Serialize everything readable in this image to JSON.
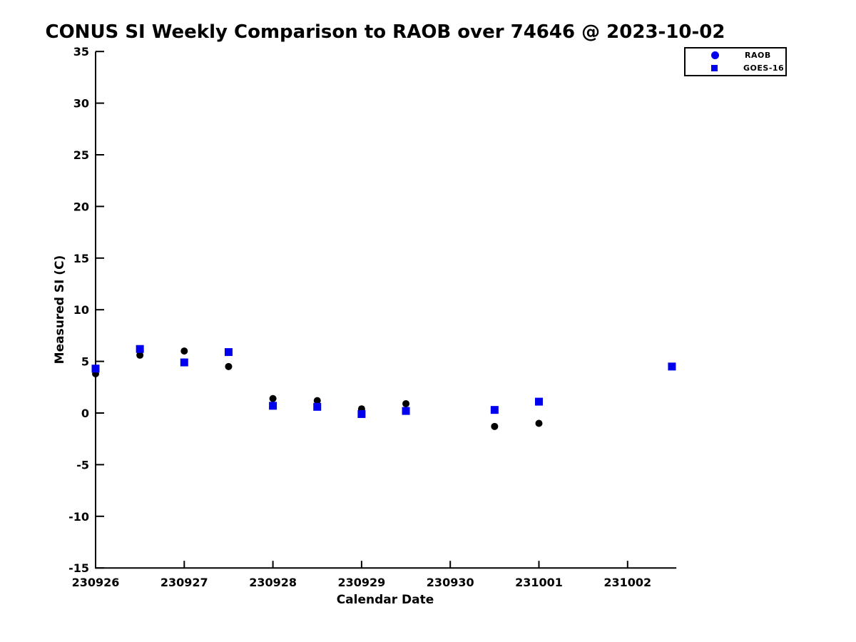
{
  "chart_data": {
    "type": "scatter",
    "title": "CONUS SI Weekly Comparison to RAOB over 74646 @ 2023-10-02",
    "xlabel": "Calendar Date",
    "ylabel": "Measured SI (C)",
    "x_tick_labels": [
      "230926",
      "230927",
      "230928",
      "230929",
      "230930",
      "231001",
      "231002"
    ],
    "x_tick_positions": [
      0,
      1,
      2,
      3,
      4,
      5,
      6
    ],
    "xlim": [
      0,
      6.55
    ],
    "ylim": [
      -15,
      35
    ],
    "y_ticks": [
      35,
      30,
      25,
      20,
      15,
      10,
      5,
      0,
      -5,
      -10,
      -15
    ],
    "grid": false,
    "legend_position": "top-right",
    "axis_color": "#000000",
    "series": [
      {
        "name": "RAOB",
        "marker": "circle",
        "color": "#000000",
        "legend_color": "#0000EE",
        "points": [
          [
            0,
            3.8
          ],
          [
            0.5,
            5.6
          ],
          [
            1,
            6.0
          ],
          [
            1.5,
            4.5
          ],
          [
            2,
            1.4
          ],
          [
            2.5,
            1.2
          ],
          [
            3,
            0.4
          ],
          [
            3.5,
            0.9
          ],
          [
            4.5,
            -1.3
          ],
          [
            5,
            -1.0
          ],
          [
            6.5,
            4.5
          ]
        ]
      },
      {
        "name": "GOES-16",
        "marker": "square",
        "color": "#0000EE",
        "legend_color": "#0000EE",
        "points": [
          [
            0,
            4.3
          ],
          [
            0.5,
            6.2
          ],
          [
            1,
            4.9
          ],
          [
            1.5,
            5.9
          ],
          [
            2,
            0.7
          ],
          [
            2.5,
            0.6
          ],
          [
            3,
            -0.1
          ],
          [
            3.5,
            0.2
          ],
          [
            4.5,
            0.3
          ],
          [
            5,
            1.1
          ],
          [
            6.5,
            4.5
          ]
        ]
      }
    ]
  }
}
